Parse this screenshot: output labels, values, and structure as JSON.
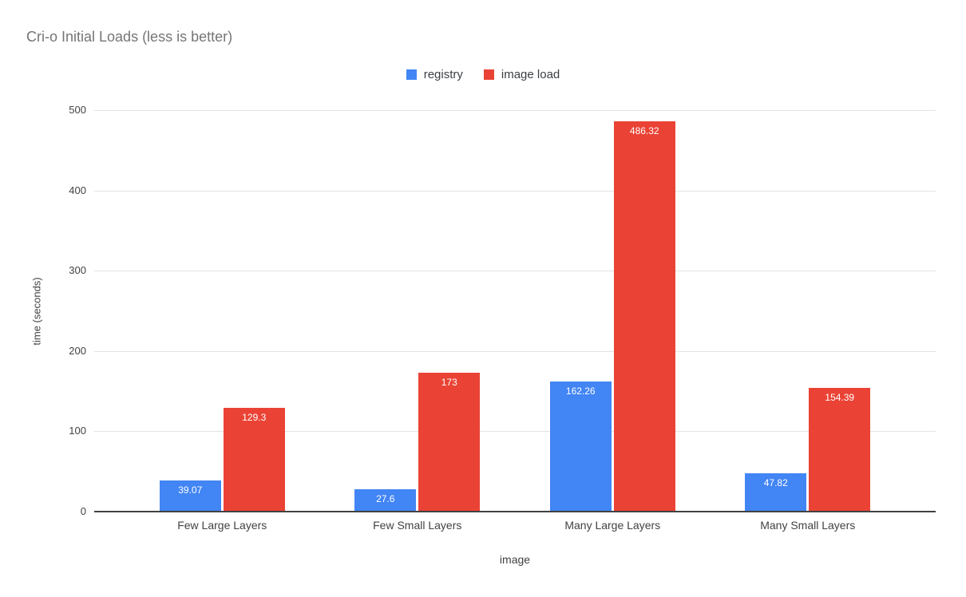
{
  "title": "Cri-o Initial Loads (less is better)",
  "legend": [
    {
      "label": "registry",
      "color": "#4285F4"
    },
    {
      "label": "image load",
      "color": "#EA4335"
    }
  ],
  "chart_data": {
    "type": "bar",
    "title": "Cri-o Initial Loads (less is better)",
    "categories": [
      "Few Large Layers",
      "Few Small Layers",
      "Many Large Layers",
      "Many Small Layers"
    ],
    "series": [
      {
        "name": "registry",
        "color": "#4285F4",
        "values": [
          39.07,
          27.6,
          162.26,
          47.82
        ],
        "labels": [
          "39.07",
          "27.6",
          "162.26",
          "47.82"
        ]
      },
      {
        "name": "image load",
        "color": "#EA4335",
        "values": [
          129.3,
          173,
          486.32,
          154.39
        ],
        "labels": [
          "129.3",
          "173",
          "486.32",
          "154.39"
        ]
      }
    ],
    "xlabel": "image",
    "ylabel": "time (seconds)",
    "ylim": [
      0,
      500
    ],
    "yticks": [
      0,
      100,
      200,
      300,
      400,
      500
    ],
    "grid": true,
    "legend_position": "top",
    "colors": {
      "gridline": "#e3e3e3",
      "baseline": "#424242",
      "title_text": "#757575",
      "axis_text": "#424242",
      "value_label_text": "#ffffff",
      "background": "#ffffff"
    }
  }
}
